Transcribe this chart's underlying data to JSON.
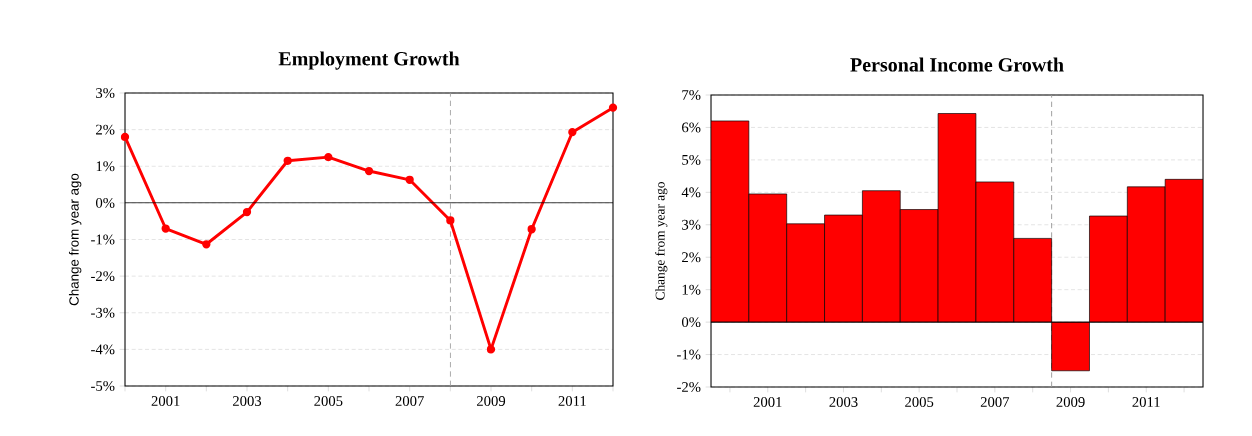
{
  "chart_data": [
    {
      "type": "line",
      "title": "Employment Growth",
      "ylabel": "Change from year ago",
      "x": [
        2000,
        2001,
        2002,
        2003,
        2004,
        2005,
        2006,
        2007,
        2008,
        2009,
        2010,
        2011,
        2012
      ],
      "series": [
        {
          "color": "#ff0000",
          "values": [
            1.8,
            -0.7,
            -1.13,
            -0.25,
            1.15,
            1.25,
            0.87,
            0.63,
            -0.48,
            -4.0,
            -0.72,
            1.93,
            2.6
          ]
        }
      ],
      "xlim": [
        2000,
        2012
      ],
      "xticks": [
        {
          "value": 2000,
          "label": null
        },
        2001,
        {
          "value": 2002,
          "label": null
        },
        2003,
        {
          "value": 2004,
          "label": null
        },
        2005,
        {
          "value": 2006,
          "label": null
        },
        2007,
        {
          "value": 2008,
          "label": null
        },
        2009,
        {
          "value": 2010,
          "label": null
        },
        2011,
        {
          "value": 2012,
          "label": null
        }
      ],
      "ylim": [
        -5,
        3
      ],
      "yticks": [
        {
          "value": -5,
          "label": "-5%"
        },
        {
          "value": -4,
          "label": "-4%"
        },
        {
          "value": -3,
          "label": "-3%"
        },
        {
          "value": -2,
          "label": "-2%"
        },
        {
          "value": -1,
          "label": "-1%"
        },
        {
          "value": 0,
          "label": "0%"
        },
        {
          "value": 1,
          "label": "1%"
        },
        {
          "value": 2,
          "label": "2%"
        },
        {
          "value": 3,
          "label": "3%"
        }
      ],
      "ref_lines": [
        {
          "axis": "y",
          "value": 0,
          "color": "#000000",
          "line_style": "solid"
        },
        {
          "axis": "x",
          "value": 2008,
          "color": "#999999",
          "line_style": "dashed"
        }
      ],
      "grid": "y",
      "marker": "circle",
      "line_style": "solid"
    },
    {
      "type": "bar",
      "title": "Personal Income Growth",
      "ylabel": "Change from year ago",
      "x": [
        2000,
        2001,
        2002,
        2003,
        2004,
        2005,
        2006,
        2007,
        2008,
        2009,
        2010,
        2011,
        2012
      ],
      "series": [
        {
          "color": "#ff0000",
          "values": [
            6.2,
            3.95,
            3.03,
            3.3,
            4.05,
            3.47,
            6.43,
            4.32,
            2.58,
            -1.5,
            3.27,
            4.17,
            4.4
          ]
        }
      ],
      "xlim": [
        1999.5,
        2012.5
      ],
      "xticks": [
        {
          "value": 2000,
          "label": null
        },
        2001,
        {
          "value": 2002,
          "label": null
        },
        2003,
        {
          "value": 2004,
          "label": null
        },
        2005,
        {
          "value": 2006,
          "label": null
        },
        2007,
        {
          "value": 2008,
          "label": null
        },
        2009,
        {
          "value": 2010,
          "label": null
        },
        2011,
        {
          "value": 2012,
          "label": null
        }
      ],
      "ylim": [
        -2,
        7
      ],
      "yticks": [
        {
          "value": -2,
          "label": "-2%"
        },
        {
          "value": -1,
          "label": "-1%"
        },
        {
          "value": 0,
          "label": "0%"
        },
        {
          "value": 1,
          "label": "1%"
        },
        {
          "value": 2,
          "label": "2%"
        },
        {
          "value": 3,
          "label": "3%"
        },
        {
          "value": 4,
          "label": "4%"
        },
        {
          "value": 5,
          "label": "5%"
        },
        {
          "value": 6,
          "label": "6%"
        },
        {
          "value": 7,
          "label": "7%"
        }
      ],
      "ref_lines": [
        {
          "axis": "y",
          "value": 0,
          "color": "#000000",
          "line_style": "solid"
        },
        {
          "axis": "x",
          "value": 2008.5,
          "color": "#999999",
          "line_style": "dashed"
        }
      ],
      "grid": "y"
    }
  ]
}
